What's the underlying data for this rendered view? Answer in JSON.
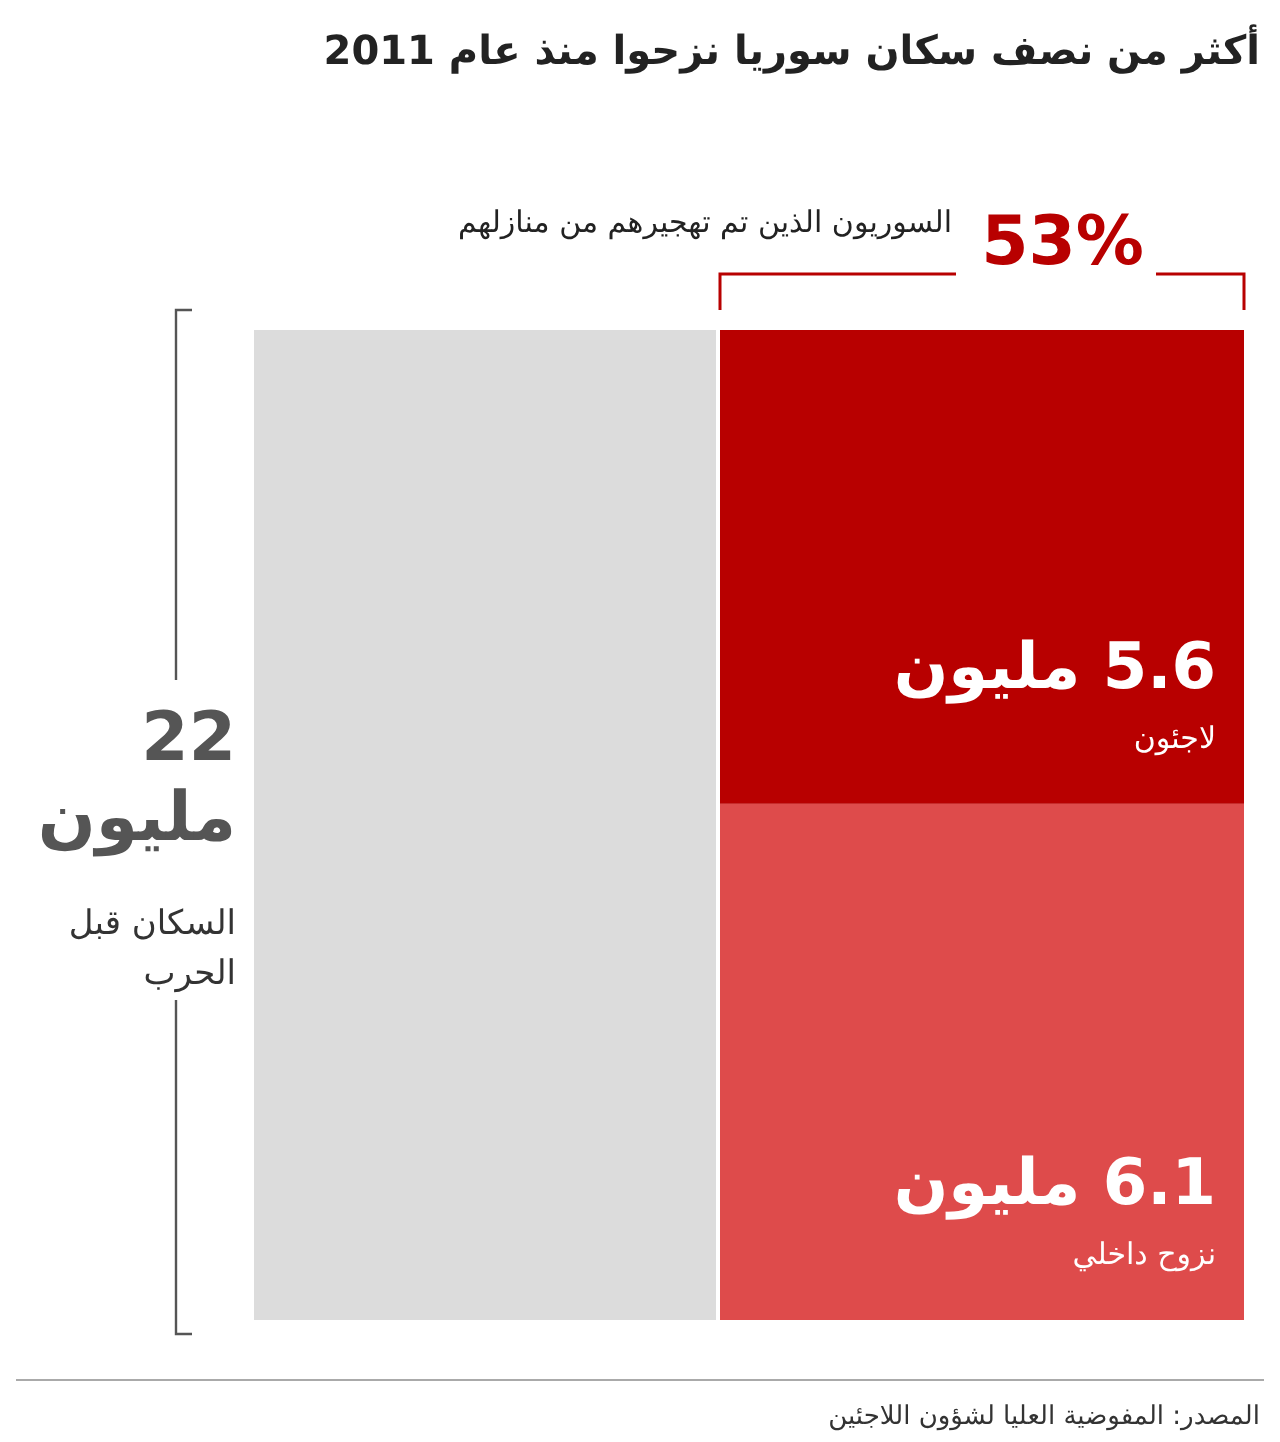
{
  "chart_data": {
    "type": "other",
    "title": "أكثر من نصف سكان سوريا نزحوا منذ عام 2011",
    "categories": [
      "لاجئون",
      "نزوح داخلي"
    ],
    "values": [
      5.6,
      6.1
    ],
    "value_labels": [
      "5.6 مليون",
      "6.1 مليون"
    ],
    "colors": [
      "#b80000",
      "#de4b4b"
    ],
    "annotations": [
      "53%",
      "السوريون الذين تم تهجيرهم من منازلهم",
      "22 مليون",
      "السكان قبل الحرب",
      "المصدر: المفوضية العليا لشؤون اللاجئين"
    ]
  }
}
